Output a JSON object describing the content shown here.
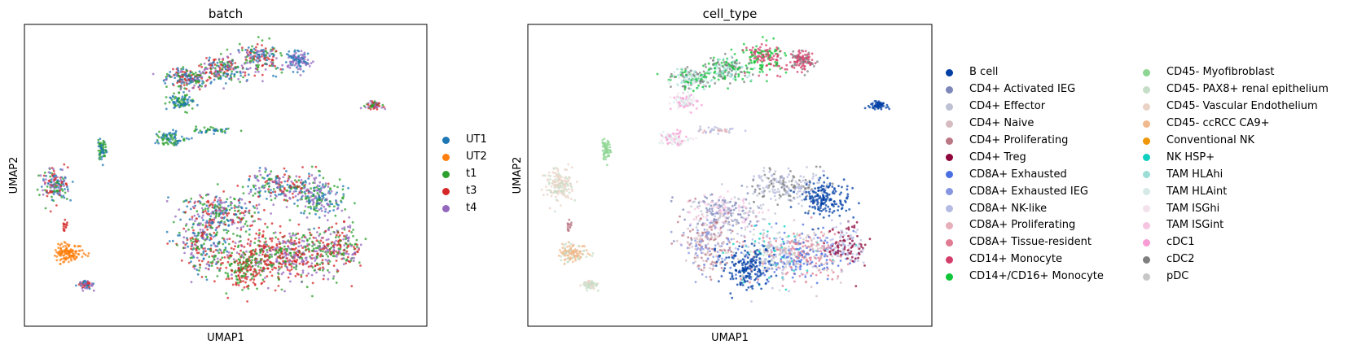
{
  "chart_data": [
    {
      "type": "scatter",
      "title": "batch",
      "xlabel": "UMAP1",
      "ylabel": "UMAP2",
      "grid": false,
      "legend_placement": "right",
      "series": [
        {
          "name": "UT1",
          "color": "#1f77b4"
        },
        {
          "name": "UT2",
          "color": "#ff7f0e"
        },
        {
          "name": "t1",
          "color": "#2ca02c"
        },
        {
          "name": "t3",
          "color": "#d62728"
        },
        {
          "name": "t4",
          "color": "#9467bd"
        }
      ]
    },
    {
      "type": "scatter",
      "title": "cell_type",
      "xlabel": "UMAP1",
      "ylabel": "UMAP2",
      "grid": false,
      "legend_placement": "right",
      "series": [
        {
          "name": "B cell",
          "color": "#023fa5"
        },
        {
          "name": "CD4+ Activated IEG",
          "color": "#7d87b9"
        },
        {
          "name": "CD4+ Effector",
          "color": "#bec1d4"
        },
        {
          "name": "CD4+ Naive",
          "color": "#d6bcc0"
        },
        {
          "name": "CD4+ Proliferating",
          "color": "#bb7784"
        },
        {
          "name": "CD4+ Treg",
          "color": "#8e063b"
        },
        {
          "name": "CD8A+ Exhausted",
          "color": "#4a6fe3"
        },
        {
          "name": "CD8A+ Exhausted IEG",
          "color": "#8595e1"
        },
        {
          "name": "CD8A+ NK-like",
          "color": "#b5bbe3"
        },
        {
          "name": "CD8A+ Proliferating",
          "color": "#e6afb9"
        },
        {
          "name": "CD8A+ Tissue-resident",
          "color": "#e07b91"
        },
        {
          "name": "CD14+ Monocyte",
          "color": "#d33f6a"
        },
        {
          "name": "CD14+/CD16+ Monocyte",
          "color": "#11c638"
        },
        {
          "name": "CD45- Myofibroblast",
          "color": "#8dd593"
        },
        {
          "name": "CD45- PAX8+ renal epithelium",
          "color": "#c6dec7"
        },
        {
          "name": "CD45- Vascular Endothelium",
          "color": "#ead3c6"
        },
        {
          "name": "CD45- ccRCC CA9+",
          "color": "#f0b98d"
        },
        {
          "name": "Conventional NK",
          "color": "#ef9708"
        },
        {
          "name": "NK HSP+",
          "color": "#0fcfc0"
        },
        {
          "name": "TAM HLAhi",
          "color": "#9cded6"
        },
        {
          "name": "TAM HLAint",
          "color": "#d5eae7"
        },
        {
          "name": "TAM ISGhi",
          "color": "#f3e1eb"
        },
        {
          "name": "TAM ISGint",
          "color": "#f6c4e1"
        },
        {
          "name": "cDC1",
          "color": "#f79cd4"
        },
        {
          "name": "cDC2",
          "color": "#7f7f7f"
        },
        {
          "name": "pDC",
          "color": "#c7c7c7"
        }
      ]
    }
  ]
}
